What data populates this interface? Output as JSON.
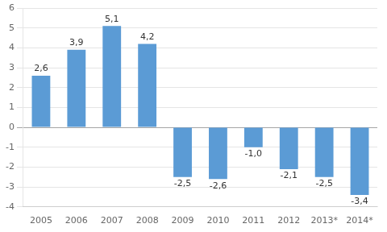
{
  "chart_data": {
    "type": "bar",
    "categories": [
      "2005",
      "2006",
      "2007",
      "2008",
      "2009",
      "2010",
      "2011",
      "2012",
      "2013*",
      "2014*"
    ],
    "values": [
      2.6,
      3.9,
      5.1,
      4.2,
      -2.5,
      -2.6,
      -1.0,
      -2.1,
      -2.5,
      -3.4
    ],
    "value_labels": [
      "2,6",
      "3,9",
      "5,1",
      "4,2",
      "-2,5",
      "-2,6",
      "-1,0",
      "-2,1",
      "-2,5",
      "-3,4"
    ],
    "data_labels": true,
    "color": "#5B9BD5",
    "ylim": [
      -4,
      6
    ],
    "yticks": [
      -4,
      -3,
      -2,
      -1,
      0,
      1,
      2,
      3,
      4,
      5,
      6
    ],
    "grid": true
  }
}
